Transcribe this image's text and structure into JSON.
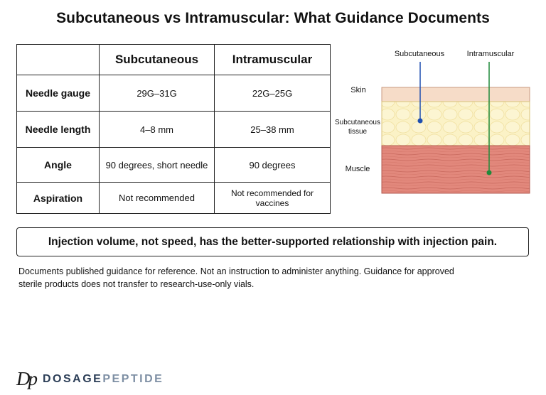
{
  "title": "Subcutaneous vs Intramuscular: What Guidance Documents",
  "table": {
    "headers": [
      "",
      "Subcutaneous",
      "Intramuscular"
    ],
    "rows": [
      {
        "label": "Needle gauge",
        "subq": "29G–31G",
        "im": "22G–25G"
      },
      {
        "label": "Needle length",
        "subq": "4–8 mm",
        "im": "25–38 mm"
      },
      {
        "label": "Angle",
        "subq": "90 degrees, short needle",
        "im": "90 degrees"
      },
      {
        "label": "Aspiration",
        "subq": "Not recommended",
        "im": "Not recommended for vaccines"
      }
    ]
  },
  "diagram": {
    "needle_labels": {
      "subcutaneous": "Subcutaneous",
      "intramuscular": "Intramuscular"
    },
    "layers": {
      "skin": "Skin",
      "subq_line1": "Subcutaneous",
      "subq_line2": "tissue",
      "muscle": "Muscle"
    },
    "colors": {
      "skin": "#f6dcc8",
      "fat": "#fbf2c6",
      "muscle": "#e2887c",
      "subq_needle": "#1f4fb0",
      "im_needle": "#1f8a3a"
    }
  },
  "callout": "Injection volume, not speed, has the better-supported relationship with injection pain.",
  "note": "Documents published guidance for reference. Not an instruction to administer anything. Guidance for approved sterile products does not transfer to research-use-only vials.",
  "brand": {
    "mark": "Dp",
    "word1": "DOSAGE",
    "word2": "PEPTIDE"
  }
}
